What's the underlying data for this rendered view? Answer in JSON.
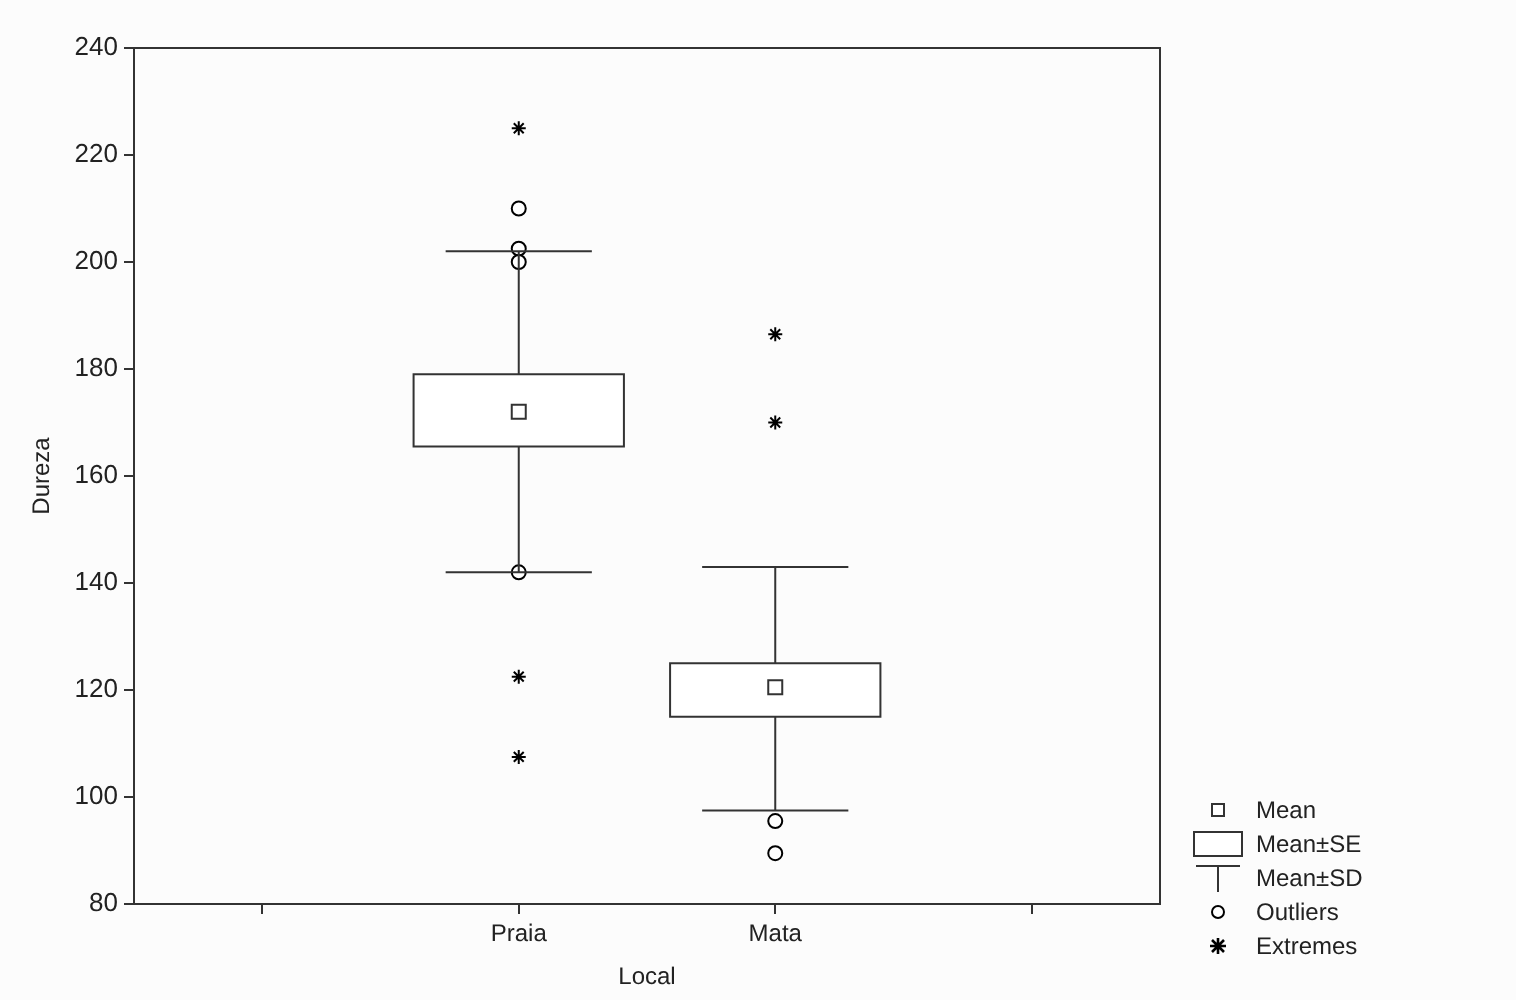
{
  "chart_data": {
    "type": "box",
    "xlabel": "Local",
    "ylabel": "Dureza",
    "categories": [
      null,
      "Praia",
      "Mata",
      null
    ],
    "ylim": [
      80,
      240
    ],
    "yticks": [
      80,
      100,
      120,
      140,
      160,
      180,
      200,
      220,
      240
    ],
    "grid": false,
    "legend": "bottom right",
    "annotations": [
      "Mean",
      "Mean±SE",
      "Mean±SD"
    ],
    "series": [
      {
        "color": "#ffffff",
        "boxes": [
          null,
          {
            "low": 142,
            "q1": 165.5,
            "median": 172,
            "q3": 179,
            "high": 202
          },
          {
            "low": 97.5,
            "q1": 115,
            "median": 120.5,
            "q3": 125,
            "high": 143
          },
          null
        ]
      },
      {
        "type": "scatter",
        "name": "Outliers",
        "color": "#000000",
        "marker": "circle",
        "x": [
          "Praia",
          "Praia",
          "Praia",
          "Praia",
          "Mata",
          "Mata"
        ],
        "values": [
          210,
          202.5,
          200,
          142,
          95.5,
          89.5
        ]
      },
      {
        "type": "scatter",
        "name": "Extremes",
        "color": "#000000",
        "marker": "cross",
        "x": [
          "Praia",
          "Praia",
          "Praia",
          "Mata",
          "Mata"
        ],
        "values": [
          225,
          122.5,
          107.5,
          186.5,
          170
        ]
      }
    ]
  }
}
